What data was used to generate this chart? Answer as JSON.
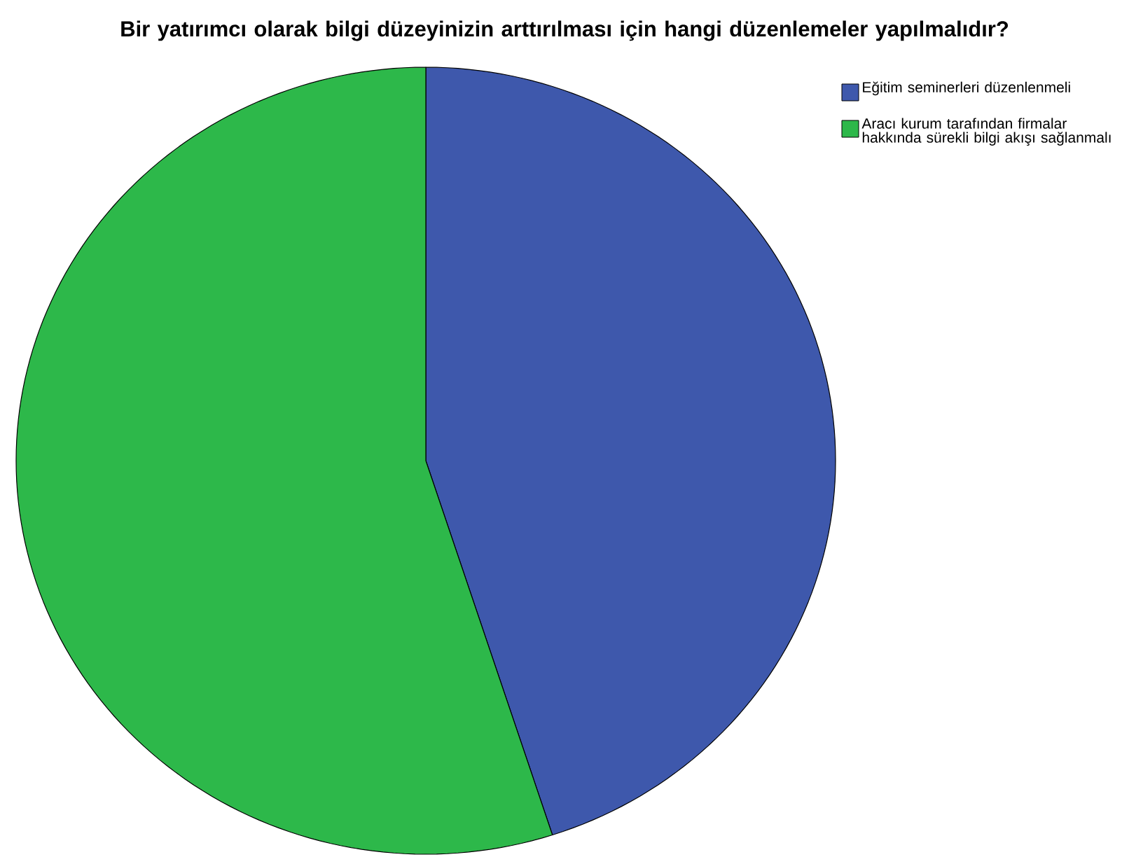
{
  "chart_data": {
    "type": "pie",
    "title": "Bir yatırımcı olarak bilgi düzeyinizin arttırılması için hangi düzenlemeler yapılmalıdır?",
    "categories": [
      "Eğitim seminerleri düzenlenmeli",
      "Aracı kurum tarafından firmalar hakkında sürekli bilgi akışı sağlanmalı"
    ],
    "values": [
      45,
      55
    ],
    "colors": [
      "#3e58ac",
      "#2db84a"
    ],
    "legend": "top right"
  }
}
